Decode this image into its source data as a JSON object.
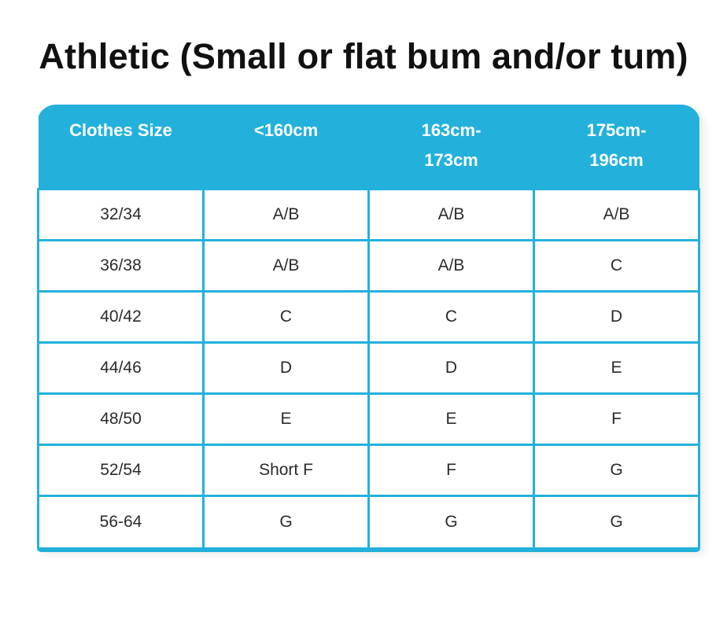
{
  "title": "Athletic (Small or flat bum and/or tum)",
  "table": {
    "accent_color": "#23b1dc",
    "header_text_color": "#ffffff",
    "body_text_color": "#2b2b2b",
    "columns": [
      "Clothes Size",
      "<160cm",
      "163cm-\n173cm",
      "175cm-\n196cm"
    ],
    "rows": [
      {
        "size": "32/34",
        "values": [
          "A/B",
          "A/B",
          "A/B"
        ]
      },
      {
        "size": "36/38",
        "values": [
          "A/B",
          "A/B",
          "C"
        ]
      },
      {
        "size": "40/42",
        "values": [
          "C",
          "C",
          "D"
        ]
      },
      {
        "size": "44/46",
        "values": [
          "D",
          "D",
          "E"
        ]
      },
      {
        "size": "48/50",
        "values": [
          "E",
          "E",
          "F"
        ]
      },
      {
        "size": "52/54",
        "values": [
          "Short F",
          "F",
          "G"
        ]
      },
      {
        "size": "56-64",
        "values": [
          "G",
          "G",
          "G"
        ]
      }
    ]
  }
}
